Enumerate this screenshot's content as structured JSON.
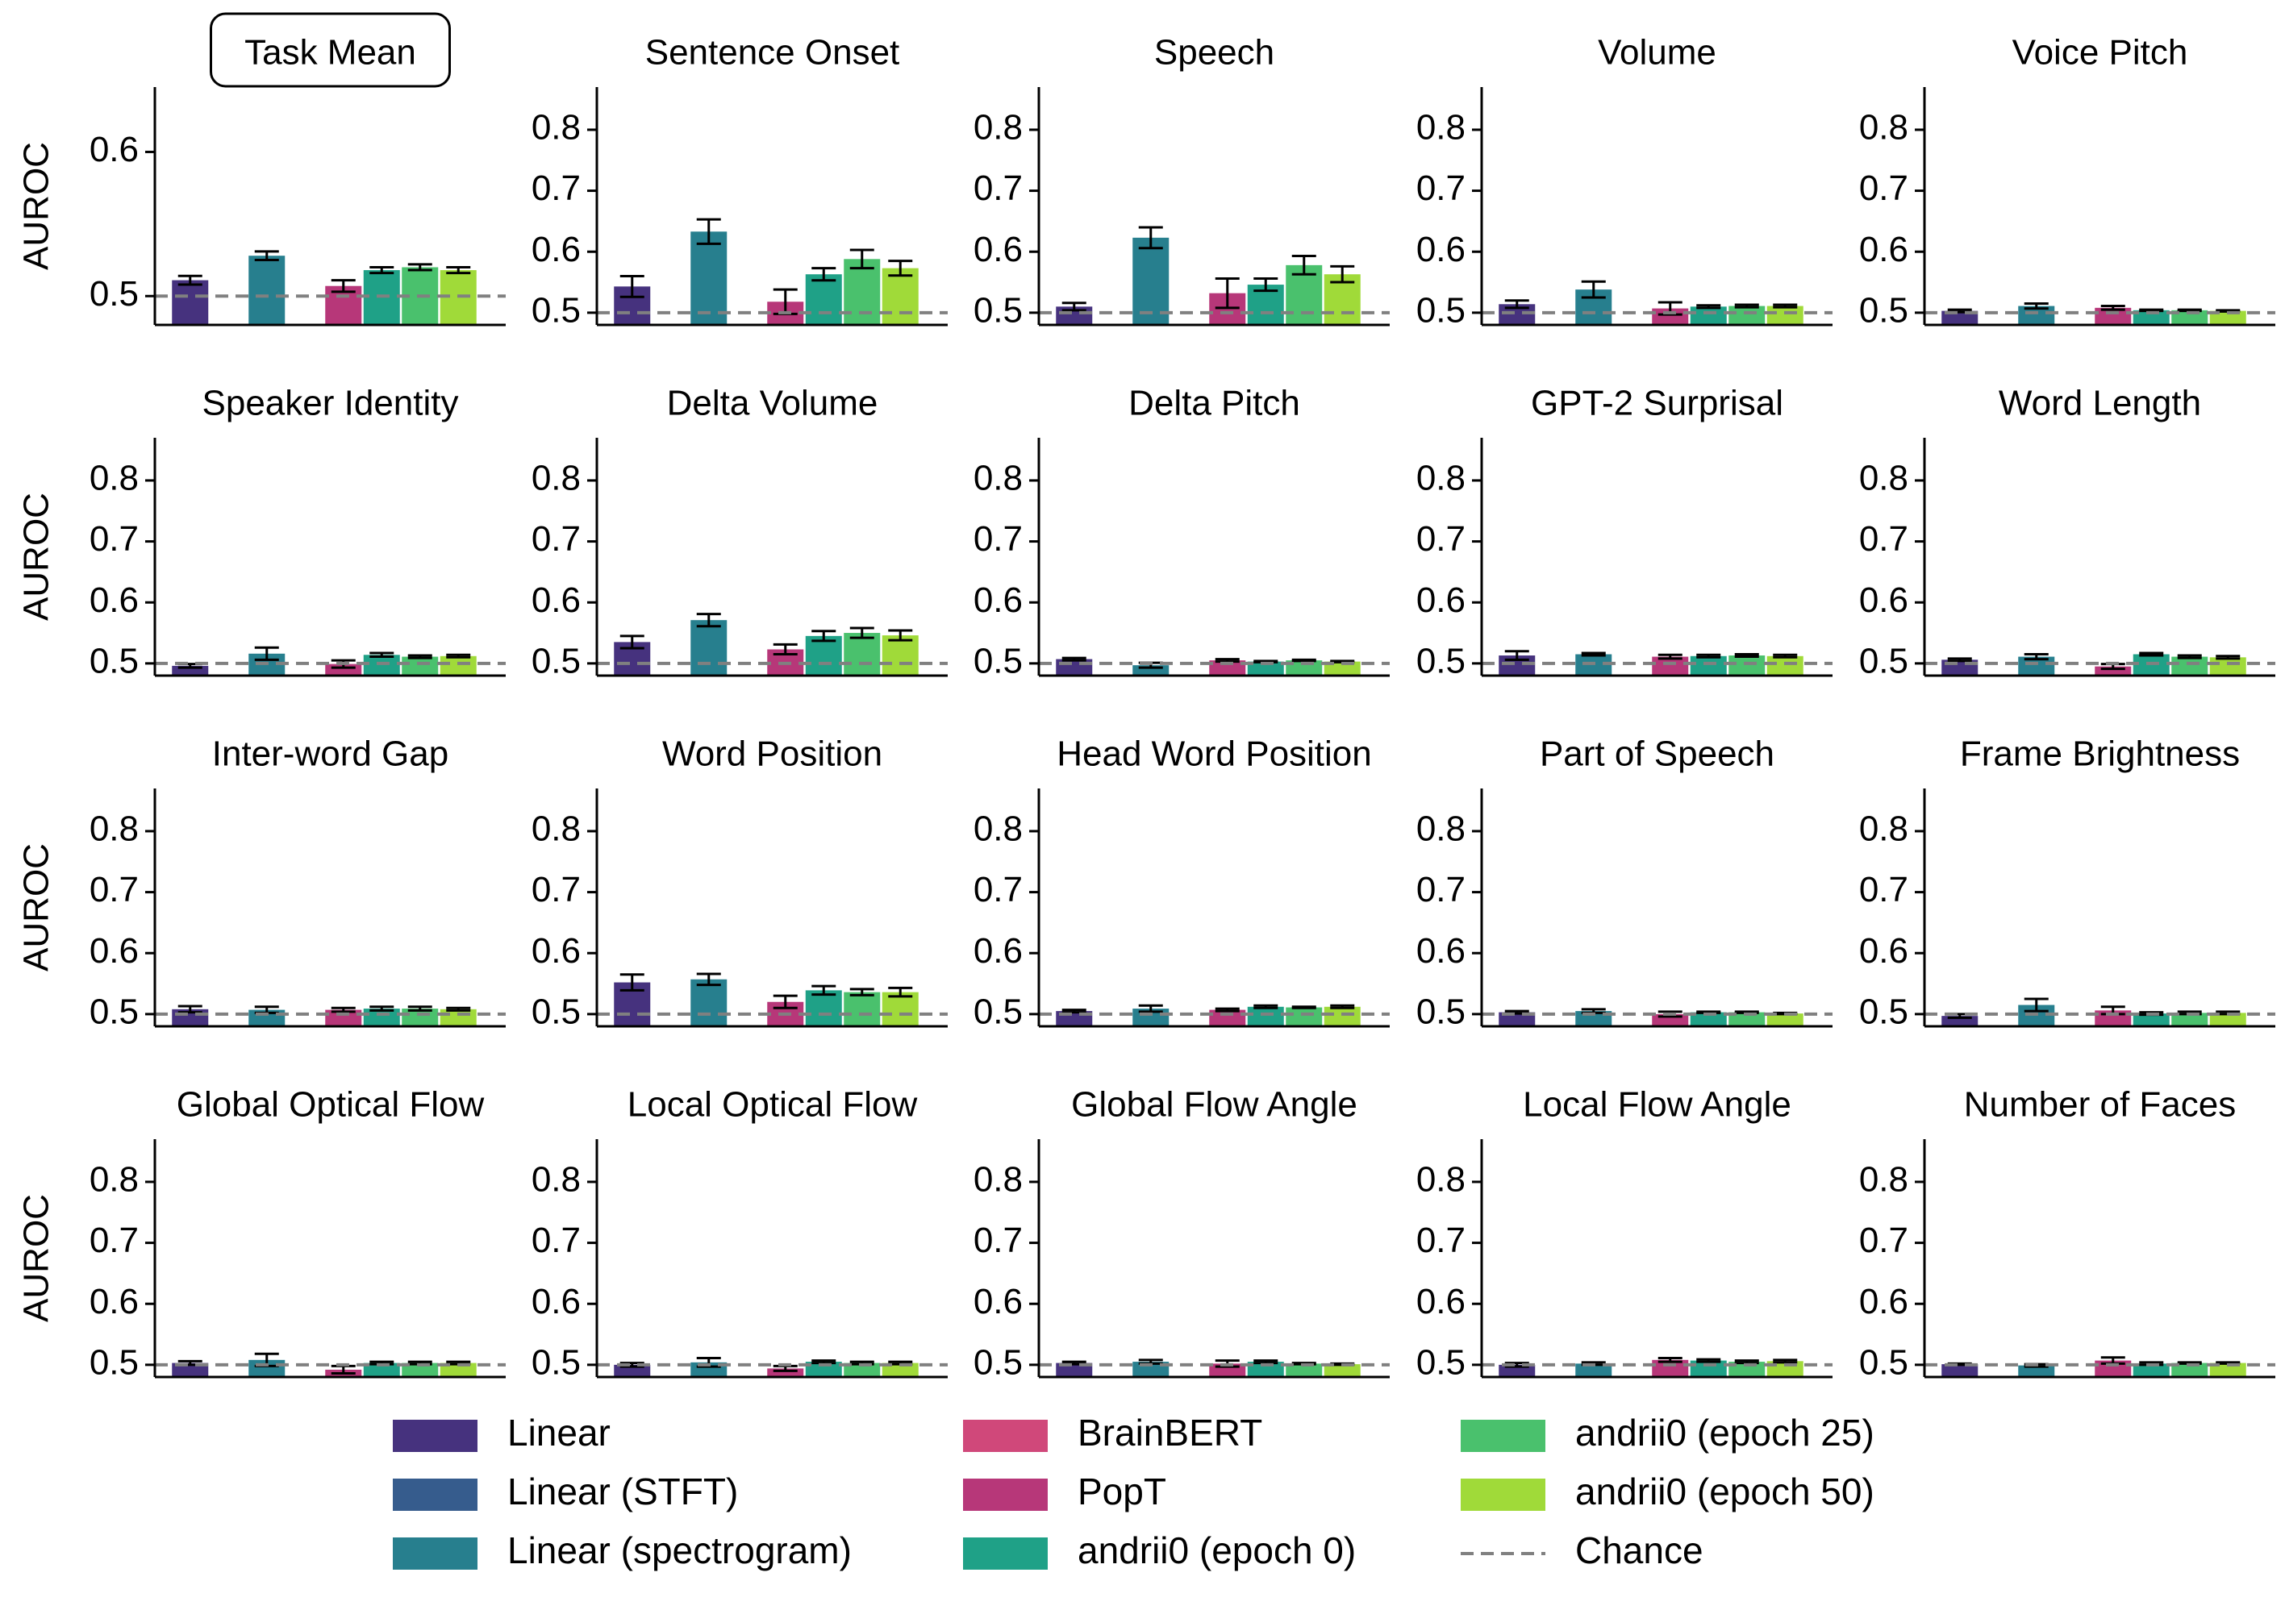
{
  "chart_data": {
    "type": "bar",
    "ylabel": "AUROC",
    "chance_level": 0.5,
    "ylim_default": [
      0.48,
      0.87
    ],
    "ylim_task_mean": [
      0.48,
      0.645
    ],
    "yticks_default": [
      "0.5",
      "0.6",
      "0.7",
      "0.8"
    ],
    "yticks_task_mean": [
      "0.5",
      "0.6"
    ],
    "series": [
      {
        "name": "Linear",
        "color": "#46327e"
      },
      {
        "name": "Linear (STFT)",
        "color": "#365c8d"
      },
      {
        "name": "Linear (spectrogram)",
        "color": "#277f8e"
      },
      {
        "name": "BrainBERT",
        "color": "#d0487a"
      },
      {
        "name": "PopT",
        "color": "#b73779"
      },
      {
        "name": "andrii0 (epoch 0)",
        "color": "#1fa187"
      },
      {
        "name": "andrii0 (epoch 25)",
        "color": "#4ac16d"
      },
      {
        "name": "andrii0 (epoch 50)",
        "color": "#a0da39"
      }
    ],
    "legend": [
      {
        "label": "Linear",
        "color": "#46327e",
        "kind": "patch"
      },
      {
        "label": "Linear (STFT)",
        "color": "#365c8d",
        "kind": "patch"
      },
      {
        "label": "Linear (spectrogram)",
        "color": "#277f8e",
        "kind": "patch"
      },
      {
        "label": "BrainBERT",
        "color": "#d0487a",
        "kind": "patch"
      },
      {
        "label": "PopT",
        "color": "#b73779",
        "kind": "patch"
      },
      {
        "label": "andrii0 (epoch 0)",
        "color": "#1fa187",
        "kind": "patch"
      },
      {
        "label": "andrii0 (epoch 25)",
        "color": "#4ac16d",
        "kind": "patch"
      },
      {
        "label": "andrii0 (epoch 50)",
        "color": "#a0da39",
        "kind": "patch"
      },
      {
        "label": "Chance",
        "color": "#808080",
        "kind": "dashed"
      }
    ],
    "panels": [
      {
        "title": "Task Mean",
        "boxed": true,
        "bars": [
          {
            "series": "Linear",
            "value": 0.511,
            "err": 0.003
          },
          {
            "series": "Linear (spectrogram)",
            "value": 0.528,
            "err": 0.003
          },
          {
            "series": "PopT",
            "value": 0.507,
            "err": 0.004
          },
          {
            "series": "andrii0 (epoch 0)",
            "value": 0.518,
            "err": 0.002
          },
          {
            "series": "andrii0 (epoch 25)",
            "value": 0.52,
            "err": 0.002
          },
          {
            "series": "andrii0 (epoch 50)",
            "value": 0.518,
            "err": 0.002
          }
        ]
      },
      {
        "title": "Sentence Onset",
        "bars": [
          {
            "series": "Linear",
            "value": 0.543,
            "err": 0.017
          },
          {
            "series": "Linear (spectrogram)",
            "value": 0.633,
            "err": 0.02
          },
          {
            "series": "PopT",
            "value": 0.518,
            "err": 0.02
          },
          {
            "series": "andrii0 (epoch 0)",
            "value": 0.563,
            "err": 0.01
          },
          {
            "series": "andrii0 (epoch 25)",
            "value": 0.588,
            "err": 0.015
          },
          {
            "series": "andrii0 (epoch 50)",
            "value": 0.573,
            "err": 0.012
          }
        ]
      },
      {
        "title": "Speech",
        "bars": [
          {
            "series": "Linear",
            "value": 0.51,
            "err": 0.006
          },
          {
            "series": "Linear (spectrogram)",
            "value": 0.623,
            "err": 0.017
          },
          {
            "series": "PopT",
            "value": 0.532,
            "err": 0.024
          },
          {
            "series": "andrii0 (epoch 0)",
            "value": 0.546,
            "err": 0.01
          },
          {
            "series": "andrii0 (epoch 25)",
            "value": 0.578,
            "err": 0.015
          },
          {
            "series": "andrii0 (epoch 50)",
            "value": 0.563,
            "err": 0.013
          }
        ]
      },
      {
        "title": "Volume",
        "bars": [
          {
            "series": "Linear",
            "value": 0.514,
            "err": 0.006
          },
          {
            "series": "Linear (spectrogram)",
            "value": 0.538,
            "err": 0.013
          },
          {
            "series": "PopT",
            "value": 0.507,
            "err": 0.01
          },
          {
            "series": "andrii0 (epoch 0)",
            "value": 0.51,
            "err": 0.002
          },
          {
            "series": "andrii0 (epoch 25)",
            "value": 0.511,
            "err": 0.002
          },
          {
            "series": "andrii0 (epoch 50)",
            "value": 0.511,
            "err": 0.002
          }
        ]
      },
      {
        "title": "Voice Pitch",
        "bars": [
          {
            "series": "Linear",
            "value": 0.503,
            "err": 0.002
          },
          {
            "series": "Linear (spectrogram)",
            "value": 0.511,
            "err": 0.004
          },
          {
            "series": "PopT",
            "value": 0.508,
            "err": 0.003
          },
          {
            "series": "andrii0 (epoch 0)",
            "value": 0.504,
            "err": 0.001
          },
          {
            "series": "andrii0 (epoch 25)",
            "value": 0.504,
            "err": 0.001
          },
          {
            "series": "andrii0 (epoch 50)",
            "value": 0.503,
            "err": 0.001
          }
        ]
      },
      {
        "title": "Speaker Identity",
        "bars": [
          {
            "series": "Linear",
            "value": 0.496,
            "err": 0.003
          },
          {
            "series": "Linear (spectrogram)",
            "value": 0.516,
            "err": 0.01
          },
          {
            "series": "PopT",
            "value": 0.499,
            "err": 0.006
          },
          {
            "series": "andrii0 (epoch 0)",
            "value": 0.514,
            "err": 0.003
          },
          {
            "series": "andrii0 (epoch 25)",
            "value": 0.511,
            "err": 0.002
          },
          {
            "series": "andrii0 (epoch 50)",
            "value": 0.512,
            "err": 0.002
          }
        ]
      },
      {
        "title": "Delta Volume",
        "bars": [
          {
            "series": "Linear",
            "value": 0.535,
            "err": 0.01
          },
          {
            "series": "Linear (spectrogram)",
            "value": 0.571,
            "err": 0.01
          },
          {
            "series": "PopT",
            "value": 0.523,
            "err": 0.008
          },
          {
            "series": "andrii0 (epoch 0)",
            "value": 0.545,
            "err": 0.008
          },
          {
            "series": "andrii0 (epoch 25)",
            "value": 0.55,
            "err": 0.008
          },
          {
            "series": "andrii0 (epoch 50)",
            "value": 0.546,
            "err": 0.008
          }
        ]
      },
      {
        "title": "Delta Pitch",
        "bars": [
          {
            "series": "Linear",
            "value": 0.507,
            "err": 0.002
          },
          {
            "series": "Linear (spectrogram)",
            "value": 0.497,
            "err": 0.004
          },
          {
            "series": "PopT",
            "value": 0.505,
            "err": 0.002
          },
          {
            "series": "andrii0 (epoch 0)",
            "value": 0.503,
            "err": 0.001
          },
          {
            "series": "andrii0 (epoch 25)",
            "value": 0.505,
            "err": 0.001
          },
          {
            "series": "andrii0 (epoch 50)",
            "value": 0.503,
            "err": 0.001
          }
        ]
      },
      {
        "title": "GPT-2 Surprisal",
        "bars": [
          {
            "series": "Linear",
            "value": 0.513,
            "err": 0.007
          },
          {
            "series": "Linear (spectrogram)",
            "value": 0.515,
            "err": 0.002
          },
          {
            "series": "PopT",
            "value": 0.511,
            "err": 0.003
          },
          {
            "series": "andrii0 (epoch 0)",
            "value": 0.512,
            "err": 0.002
          },
          {
            "series": "andrii0 (epoch 25)",
            "value": 0.513,
            "err": 0.002
          },
          {
            "series": "andrii0 (epoch 50)",
            "value": 0.512,
            "err": 0.002
          }
        ]
      },
      {
        "title": "Word Length",
        "bars": [
          {
            "series": "Linear",
            "value": 0.506,
            "err": 0.002
          },
          {
            "series": "Linear (spectrogram)",
            "value": 0.511,
            "err": 0.004
          },
          {
            "series": "PopT",
            "value": 0.495,
            "err": 0.004
          },
          {
            "series": "andrii0 (epoch 0)",
            "value": 0.515,
            "err": 0.002
          },
          {
            "series": "andrii0 (epoch 25)",
            "value": 0.511,
            "err": 0.002
          },
          {
            "series": "andrii0 (epoch 50)",
            "value": 0.51,
            "err": 0.002
          }
        ]
      },
      {
        "title": "Inter-word Gap",
        "bars": [
          {
            "series": "Linear",
            "value": 0.508,
            "err": 0.005
          },
          {
            "series": "Linear (spectrogram)",
            "value": 0.507,
            "err": 0.005
          },
          {
            "series": "PopT",
            "value": 0.507,
            "err": 0.003
          },
          {
            "series": "andrii0 (epoch 0)",
            "value": 0.509,
            "err": 0.003
          },
          {
            "series": "andrii0 (epoch 25)",
            "value": 0.509,
            "err": 0.003
          },
          {
            "series": "andrii0 (epoch 50)",
            "value": 0.508,
            "err": 0.002
          }
        ]
      },
      {
        "title": "Word Position",
        "bars": [
          {
            "series": "Linear",
            "value": 0.552,
            "err": 0.013
          },
          {
            "series": "Linear (spectrogram)",
            "value": 0.557,
            "err": 0.009
          },
          {
            "series": "PopT",
            "value": 0.52,
            "err": 0.01
          },
          {
            "series": "andrii0 (epoch 0)",
            "value": 0.539,
            "err": 0.007
          },
          {
            "series": "andrii0 (epoch 25)",
            "value": 0.536,
            "err": 0.005
          },
          {
            "series": "andrii0 (epoch 50)",
            "value": 0.536,
            "err": 0.007
          }
        ]
      },
      {
        "title": "Head Word Position",
        "bars": [
          {
            "series": "Linear",
            "value": 0.505,
            "err": 0.002
          },
          {
            "series": "Linear (spectrogram)",
            "value": 0.509,
            "err": 0.005
          },
          {
            "series": "PopT",
            "value": 0.507,
            "err": 0.002
          },
          {
            "series": "andrii0 (epoch 0)",
            "value": 0.512,
            "err": 0.002
          },
          {
            "series": "andrii0 (epoch 25)",
            "value": 0.511,
            "err": 0.001
          },
          {
            "series": "andrii0 (epoch 50)",
            "value": 0.512,
            "err": 0.002
          }
        ]
      },
      {
        "title": "Part of Speech",
        "bars": [
          {
            "series": "Linear",
            "value": 0.503,
            "err": 0.002
          },
          {
            "series": "Linear (spectrogram)",
            "value": 0.505,
            "err": 0.003
          },
          {
            "series": "PopT",
            "value": 0.5,
            "err": 0.004
          },
          {
            "series": "andrii0 (epoch 0)",
            "value": 0.503,
            "err": 0.001
          },
          {
            "series": "andrii0 (epoch 25)",
            "value": 0.503,
            "err": 0.001
          },
          {
            "series": "andrii0 (epoch 50)",
            "value": 0.501,
            "err": 0.001
          }
        ]
      },
      {
        "title": "Frame Brightness",
        "bars": [
          {
            "series": "Linear",
            "value": 0.497,
            "err": 0.003
          },
          {
            "series": "Linear (spectrogram)",
            "value": 0.515,
            "err": 0.01
          },
          {
            "series": "PopT",
            "value": 0.506,
            "err": 0.006
          },
          {
            "series": "andrii0 (epoch 0)",
            "value": 0.501,
            "err": 0.002
          },
          {
            "series": "andrii0 (epoch 25)",
            "value": 0.502,
            "err": 0.002
          },
          {
            "series": "andrii0 (epoch 50)",
            "value": 0.502,
            "err": 0.002
          }
        ]
      },
      {
        "title": "Global Optical Flow",
        "bars": [
          {
            "series": "Linear",
            "value": 0.503,
            "err": 0.003
          },
          {
            "series": "Linear (spectrogram)",
            "value": 0.508,
            "err": 0.01
          },
          {
            "series": "PopT",
            "value": 0.492,
            "err": 0.006
          },
          {
            "series": "andrii0 (epoch 0)",
            "value": 0.503,
            "err": 0.002
          },
          {
            "series": "andrii0 (epoch 25)",
            "value": 0.503,
            "err": 0.002
          },
          {
            "series": "andrii0 (epoch 50)",
            "value": 0.503,
            "err": 0.002
          }
        ]
      },
      {
        "title": "Local Optical Flow",
        "bars": [
          {
            "series": "Linear",
            "value": 0.5,
            "err": 0.003
          },
          {
            "series": "Linear (spectrogram)",
            "value": 0.504,
            "err": 0.007
          },
          {
            "series": "PopT",
            "value": 0.494,
            "err": 0.004
          },
          {
            "series": "andrii0 (epoch 0)",
            "value": 0.505,
            "err": 0.002
          },
          {
            "series": "andrii0 (epoch 25)",
            "value": 0.503,
            "err": 0.002
          },
          {
            "series": "andrii0 (epoch 50)",
            "value": 0.503,
            "err": 0.002
          }
        ]
      },
      {
        "title": "Global Flow Angle",
        "bars": [
          {
            "series": "Linear",
            "value": 0.503,
            "err": 0.002
          },
          {
            "series": "Linear (spectrogram)",
            "value": 0.505,
            "err": 0.003
          },
          {
            "series": "PopT",
            "value": 0.502,
            "err": 0.005
          },
          {
            "series": "andrii0 (epoch 0)",
            "value": 0.505,
            "err": 0.002
          },
          {
            "series": "andrii0 (epoch 25)",
            "value": 0.502,
            "err": 0.001
          },
          {
            "series": "andrii0 (epoch 50)",
            "value": 0.501,
            "err": 0.001
          }
        ]
      },
      {
        "title": "Local Flow Angle",
        "bars": [
          {
            "series": "Linear",
            "value": 0.5,
            "err": 0.003
          },
          {
            "series": "Linear (spectrogram)",
            "value": 0.502,
            "err": 0.002
          },
          {
            "series": "PopT",
            "value": 0.508,
            "err": 0.003
          },
          {
            "series": "andrii0 (epoch 0)",
            "value": 0.507,
            "err": 0.002
          },
          {
            "series": "andrii0 (epoch 25)",
            "value": 0.505,
            "err": 0.002
          },
          {
            "series": "andrii0 (epoch 50)",
            "value": 0.506,
            "err": 0.002
          }
        ]
      },
      {
        "title": "Number of Faces",
        "bars": [
          {
            "series": "Linear",
            "value": 0.501,
            "err": 0.001
          },
          {
            "series": "Linear (spectrogram)",
            "value": 0.499,
            "err": 0.002
          },
          {
            "series": "PopT",
            "value": 0.507,
            "err": 0.005
          },
          {
            "series": "andrii0 (epoch 0)",
            "value": 0.502,
            "err": 0.002
          },
          {
            "series": "andrii0 (epoch 25)",
            "value": 0.503,
            "err": 0.001
          },
          {
            "series": "andrii0 (epoch 50)",
            "value": 0.503,
            "err": 0.001
          }
        ]
      }
    ]
  }
}
